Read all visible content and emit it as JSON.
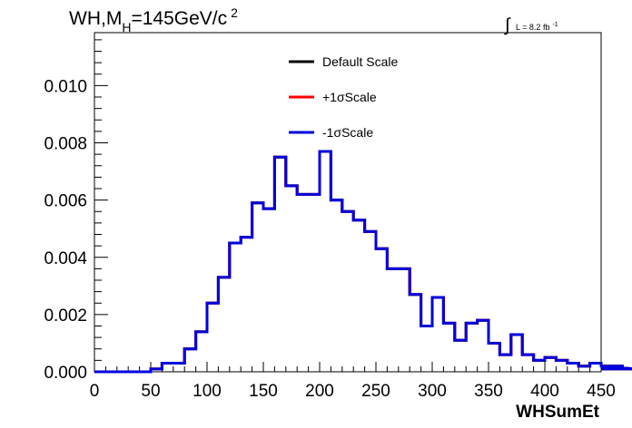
{
  "chart_data": {
    "type": "line",
    "title_main": "WH,M",
    "title_sub": "H",
    "title_rest": "=145GeV/c",
    "title_sup": "2",
    "lumi": {
      "symbol": "∫",
      "text": "L = 8.2 fb",
      "sup": "-1"
    },
    "xlabel": "WHSumEt",
    "ylabel": "",
    "xlim": [
      0,
      450
    ],
    "ylim": [
      0,
      0.01185
    ],
    "x_ticks": [
      "0",
      "50",
      "100",
      "150",
      "200",
      "250",
      "300",
      "350",
      "400",
      "450"
    ],
    "y_ticks": [
      "0.000",
      "0.002",
      "0.004",
      "0.006",
      "0.008",
      "0.010"
    ],
    "bin_width": 10,
    "bin_edges_start": 0,
    "series": [
      {
        "name": "Default Scale",
        "color": "#000000",
        "values": [
          0,
          0,
          0,
          0,
          0,
          0.0001,
          0.0003,
          0.0003,
          0.0008,
          0.0014,
          0.0024,
          0.0033,
          0.0045,
          0.0047,
          0.0059,
          0.0057,
          0.0075,
          0.0065,
          0.0062,
          0.0062,
          0.0077,
          0.006,
          0.0056,
          0.0053,
          0.0049,
          0.0043,
          0.0036,
          0.0036,
          0.0027,
          0.0016,
          0.0026,
          0.0017,
          0.0011,
          0.0017,
          0.0018,
          0.001,
          0.0006,
          0.0013,
          0.0006,
          0.0004,
          0.0005,
          0.0004,
          0.0003,
          0.0002,
          0.0003,
          0.0002,
          0.0001,
          0.0002,
          0.0001
        ]
      },
      {
        "name": "+1σScale",
        "color": "#ff0000",
        "values": [
          0,
          0,
          0,
          0,
          0,
          0.0001,
          0.0003,
          0.0003,
          0.0008,
          0.0014,
          0.0024,
          0.0033,
          0.0045,
          0.0047,
          0.0059,
          0.0057,
          0.0075,
          0.0065,
          0.0062,
          0.0062,
          0.0077,
          0.006,
          0.0056,
          0.0053,
          0.0049,
          0.0043,
          0.0036,
          0.0036,
          0.0027,
          0.0016,
          0.0026,
          0.0017,
          0.0011,
          0.0017,
          0.0018,
          0.001,
          0.0006,
          0.0013,
          0.0006,
          0.0004,
          0.0005,
          0.0004,
          0.0003,
          0.0002,
          0.0003,
          0.0002,
          0.0001,
          0.0002,
          0.0001
        ]
      },
      {
        "name": "-1σScale",
        "color": "#0000dd",
        "values": [
          0,
          0,
          0,
          0,
          0,
          0.0001,
          0.0003,
          0.0003,
          0.0008,
          0.0014,
          0.0024,
          0.0033,
          0.0045,
          0.0047,
          0.0059,
          0.0057,
          0.0075,
          0.0065,
          0.0062,
          0.0062,
          0.0077,
          0.006,
          0.0056,
          0.0053,
          0.0049,
          0.0043,
          0.0036,
          0.0036,
          0.0027,
          0.0016,
          0.0026,
          0.0017,
          0.0011,
          0.0017,
          0.0018,
          0.001,
          0.0006,
          0.0013,
          0.0006,
          0.0004,
          0.0005,
          0.0004,
          0.0003,
          0.0002,
          0.0003,
          0.0002,
          0.0001,
          0.0002,
          0.0001
        ]
      }
    ],
    "legend": [
      "Default Scale",
      "+1σScale",
      "-1σScale"
    ],
    "legend_position": "top-center",
    "grid": false
  }
}
